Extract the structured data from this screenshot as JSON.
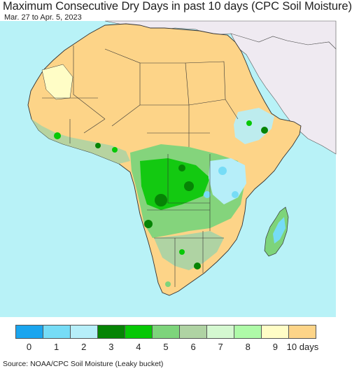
{
  "header": {
    "title": "Maximum Consecutive Dry Days in past 10 days (CPC Soil Moisture)",
    "date_range": "Mar. 27 to Apr. 5, 2023"
  },
  "map": {
    "region": "Africa",
    "colors": {
      "ocean": "#b8f2f7",
      "non_africa_land": "#efeaf1",
      "borders": "#333333",
      "dry_10": "#fdd488"
    }
  },
  "legend": {
    "items": [
      {
        "label": "0",
        "color": "#1aa5ee"
      },
      {
        "label": "1",
        "color": "#76dcf6"
      },
      {
        "label": "2",
        "color": "#b6eef9"
      },
      {
        "label": "3",
        "color": "#068405"
      },
      {
        "label": "4",
        "color": "#07c806"
      },
      {
        "label": "5",
        "color": "#7dd47b"
      },
      {
        "label": "6",
        "color": "#afd3a3"
      },
      {
        "label": "7",
        "color": "#d4f8d0"
      },
      {
        "label": "8",
        "color": "#aefaa8"
      },
      {
        "label": "9",
        "color": "#fffdc6"
      },
      {
        "label": "10 days",
        "color": "#fdd488"
      }
    ]
  },
  "footer": {
    "source": "Source: NOAA/CPC Soil Moisture (Leaky bucket)"
  }
}
